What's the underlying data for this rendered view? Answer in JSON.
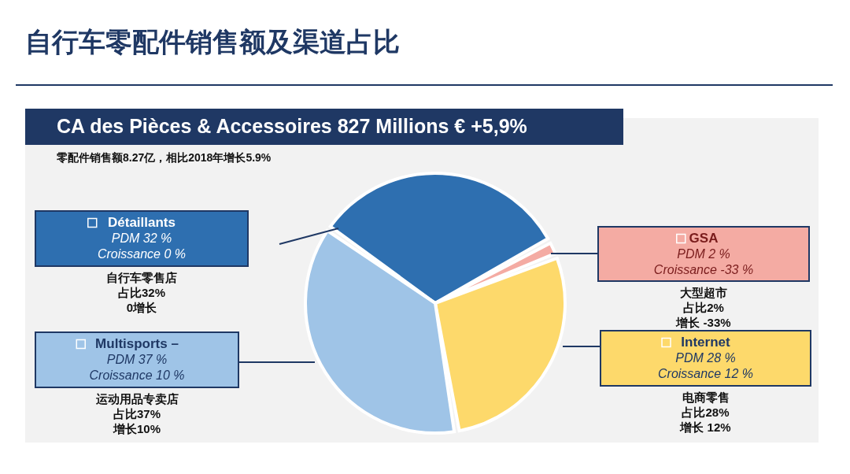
{
  "chart_data": {
    "type": "pie",
    "title": "自行车零配件销售额及渠道占比",
    "subtitle": "CA des Pièces & Accessoires 827 Millions € +5,9%",
    "categories": [
      "Détaillants",
      "GSA",
      "Internet",
      "Multisports –"
    ],
    "values": [
      32,
      2,
      28,
      37
    ],
    "colors": [
      "#2e6fb0",
      "#f4aba3",
      "#fdd96b",
      "#9fc4e7"
    ],
    "value_labels": [
      "PDM 32 %",
      "PDM 2 %",
      "PDM 28 %",
      "PDM 37 %"
    ],
    "annotations": [
      "零配件销售额8.27亿，相比2018年增长5.9%",
      "Croissance  0 %",
      "Croissance  -33 %",
      "Croissance  12 %",
      "Croissance  10 %",
      "自行车零售店",
      "占比32%",
      "0增长",
      "大型超市",
      "占比2%",
      "增长 -33%",
      "电商零售",
      "占比28%",
      "增长 12%",
      "运动用品专卖店",
      "占比37%",
      "增长10%"
    ],
    "legend": "left"
  }
}
